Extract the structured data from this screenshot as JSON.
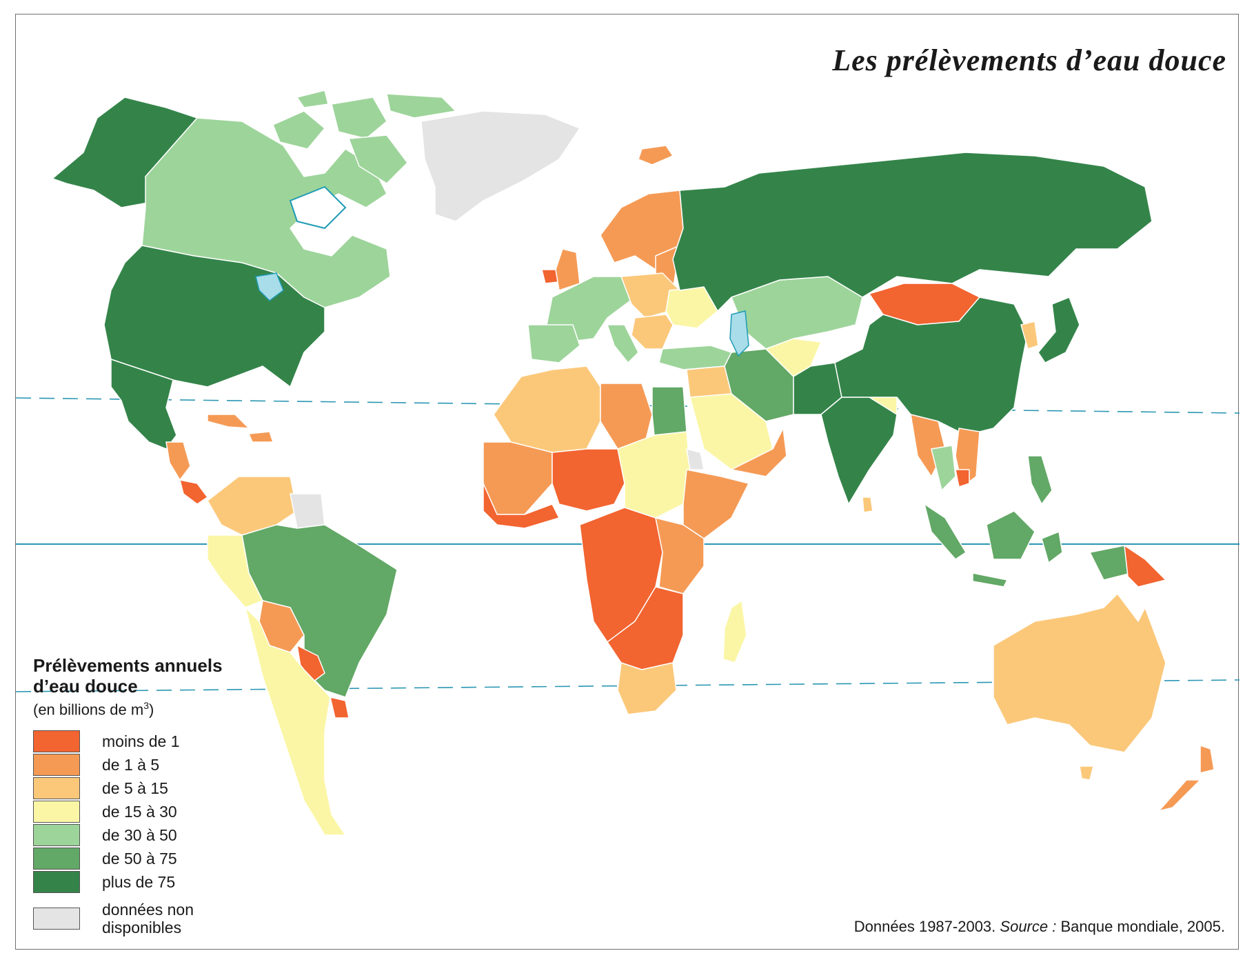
{
  "title": "Les prélèvements d’eau douce",
  "legend": {
    "title": "Prélèvements annuels d’eau douce",
    "subtitle_prefix": "(en billions de m",
    "subtitle_exponent": "3",
    "subtitle_suffix": ")",
    "classes": [
      {
        "label": "moins de 1",
        "color": "#f26430"
      },
      {
        "label": "de 1 à 5",
        "color": "#f59a55"
      },
      {
        "label": "de 5 à 15",
        "color": "#fbc87a"
      },
      {
        "label": "de 15 à 30",
        "color": "#fbf6a6"
      },
      {
        "label": "de 30 à 50",
        "color": "#9dd49a"
      },
      {
        "label": "de 50 à 75",
        "color": "#62a866"
      },
      {
        "label": "plus de 75",
        "color": "#34844a"
      }
    ],
    "no_data": {
      "label_line1": "données non",
      "label_line2": "disponibles",
      "color": "#e4e4e4"
    }
  },
  "source": {
    "prefix": "Données 1987-2003.",
    "label": "Source :",
    "text": "Banque mondiale, 2005."
  },
  "colors": {
    "water_outline": "#1e9bb4",
    "lakes": "#a8dde9",
    "border": "#ffffff"
  }
}
